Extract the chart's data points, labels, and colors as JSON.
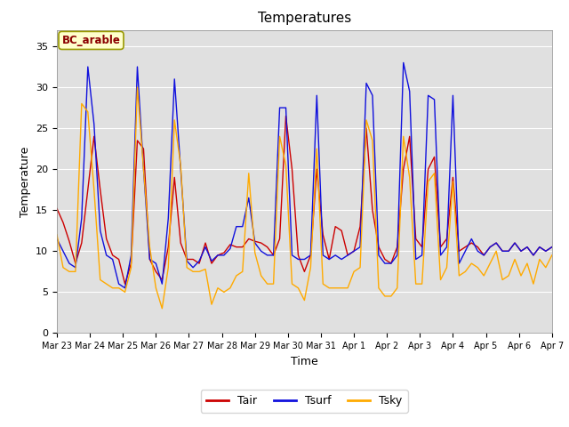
{
  "title": "Temperatures",
  "xlabel": "Time",
  "ylabel": "Temperature",
  "ylim": [
    0,
    37
  ],
  "yticks": [
    0,
    5,
    10,
    15,
    20,
    25,
    30,
    35
  ],
  "annotation": "BC_arable",
  "legend_labels": [
    "Tair",
    "Tsurf",
    "Tsky"
  ],
  "line_colors": [
    "#cc0000",
    "#1010dd",
    "#ffaa00"
  ],
  "background_color": "#ffffff",
  "plot_bg_color": "#e0e0e0",
  "x_tick_labels": [
    "Mar 23",
    "Mar 24",
    "Mar 25",
    "Mar 26",
    "Mar 27",
    "Mar 28",
    "Mar 29",
    "Mar 30",
    "Mar 31",
    "Apr 1",
    "Apr 2",
    "Apr 3",
    "Apr 4",
    "Apr 5",
    "Apr 6",
    "Apr 7"
  ],
  "tair": [
    15.2,
    13.5,
    11.2,
    8.5,
    11.0,
    17.5,
    24.0,
    17.5,
    11.5,
    9.5,
    9.0,
    6.0,
    8.5,
    23.5,
    22.5,
    9.0,
    7.5,
    6.5,
    10.5,
    19.0,
    11.0,
    9.0,
    9.0,
    8.5,
    11.0,
    8.5,
    9.5,
    9.8,
    10.8,
    10.5,
    10.5,
    11.5,
    11.2,
    11.0,
    10.5,
    9.5,
    11.5,
    26.5,
    20.0,
    9.5,
    7.5,
    9.5,
    20.0,
    12.0,
    9.0,
    13.0,
    12.5,
    9.5,
    10.0,
    13.0,
    25.0,
    15.0,
    10.5,
    9.0,
    8.5,
    10.5,
    20.0,
    24.0,
    11.5,
    10.5,
    20.0,
    21.5,
    10.5,
    11.5,
    19.0,
    10.0,
    10.5,
    11.0,
    10.5,
    9.5,
    10.5,
    11.0,
    10.0,
    10.0,
    11.0,
    10.0,
    10.5,
    9.5,
    10.5,
    10.0,
    10.5
  ],
  "tsurf": [
    11.5,
    10.0,
    8.5,
    8.0,
    14.0,
    32.5,
    25.5,
    12.5,
    9.5,
    9.0,
    6.0,
    5.5,
    9.5,
    32.5,
    20.0,
    9.0,
    8.5,
    6.0,
    14.0,
    31.0,
    20.0,
    8.8,
    8.0,
    8.8,
    10.5,
    8.8,
    9.5,
    9.5,
    10.3,
    13.0,
    13.0,
    16.5,
    11.0,
    10.0,
    9.5,
    9.5,
    27.5,
    27.5,
    9.5,
    9.0,
    9.0,
    9.5,
    29.0,
    9.5,
    9.0,
    9.5,
    9.0,
    9.5,
    10.0,
    10.5,
    30.5,
    29.0,
    9.5,
    8.5,
    8.5,
    9.5,
    33.0,
    29.5,
    9.0,
    9.5,
    29.0,
    28.5,
    9.5,
    10.5,
    29.0,
    8.5,
    10.0,
    11.5,
    10.0,
    9.5,
    10.5,
    11.0,
    10.0,
    10.0,
    11.0,
    10.0,
    10.5,
    9.5,
    10.5,
    10.0,
    10.5
  ],
  "tsky": [
    12.0,
    8.0,
    7.5,
    7.5,
    28.0,
    27.0,
    17.5,
    6.5,
    6.0,
    5.5,
    5.5,
    5.0,
    8.0,
    30.0,
    20.0,
    10.5,
    5.5,
    3.0,
    8.0,
    26.0,
    20.5,
    8.0,
    7.5,
    7.5,
    7.8,
    3.5,
    5.5,
    5.0,
    5.5,
    7.0,
    7.5,
    19.5,
    9.8,
    7.0,
    6.0,
    6.0,
    24.0,
    20.5,
    6.0,
    5.5,
    4.0,
    8.0,
    22.5,
    6.0,
    5.5,
    5.5,
    5.5,
    5.5,
    7.5,
    8.0,
    26.0,
    23.5,
    5.5,
    4.5,
    4.5,
    5.5,
    24.0,
    19.0,
    6.0,
    6.0,
    18.5,
    19.5,
    6.5,
    8.0,
    18.5,
    7.0,
    7.5,
    8.5,
    8.0,
    7.0,
    8.5,
    10.0,
    6.5,
    7.0,
    9.0,
    7.0,
    8.5,
    6.0,
    9.0,
    8.0,
    9.5
  ]
}
